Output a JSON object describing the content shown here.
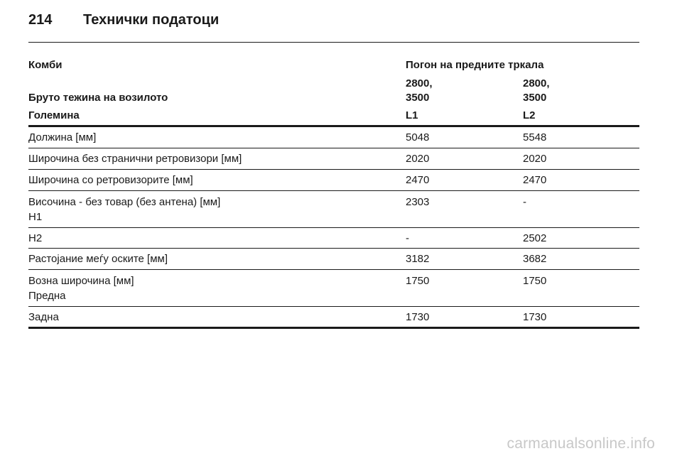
{
  "header": {
    "page_number": "214",
    "title": "Технички податоци"
  },
  "table": {
    "model_label": "Комби",
    "drive_label": "Погон на предните тркала",
    "gross_weight_label": "Бруто тежина на возилото",
    "weight_col1": [
      "2800,",
      "3500"
    ],
    "weight_col2": [
      "2800,",
      "3500"
    ],
    "size_label": "Големина",
    "size_col1": "L1",
    "size_col2": "L2",
    "rows": [
      {
        "label": "Должина [мм]",
        "v1": "5048",
        "v2": "5548"
      },
      {
        "label": "Широчина без странични ретровизори [мм]",
        "v1": "2020",
        "v2": "2020"
      },
      {
        "label": "Широчина со ретровизорите [мм]",
        "v1": "2470",
        "v2": "2470"
      },
      {
        "label": "Височина - без товар (без антена) [мм]",
        "sublabel": "H1",
        "v1": "2303",
        "v2": "-"
      },
      {
        "label": "H2",
        "v1": "-",
        "v2": "2502"
      },
      {
        "label": "Растојание меѓу оските [мм]",
        "v1": "3182",
        "v2": "3682"
      },
      {
        "label": "Возна широчина [мм]",
        "sublabel": "Предна",
        "v1": "1750",
        "v2": "1750"
      },
      {
        "label": "Задна",
        "v1": "1730",
        "v2": "1730"
      }
    ]
  },
  "watermark": "carmanualsonline.info"
}
